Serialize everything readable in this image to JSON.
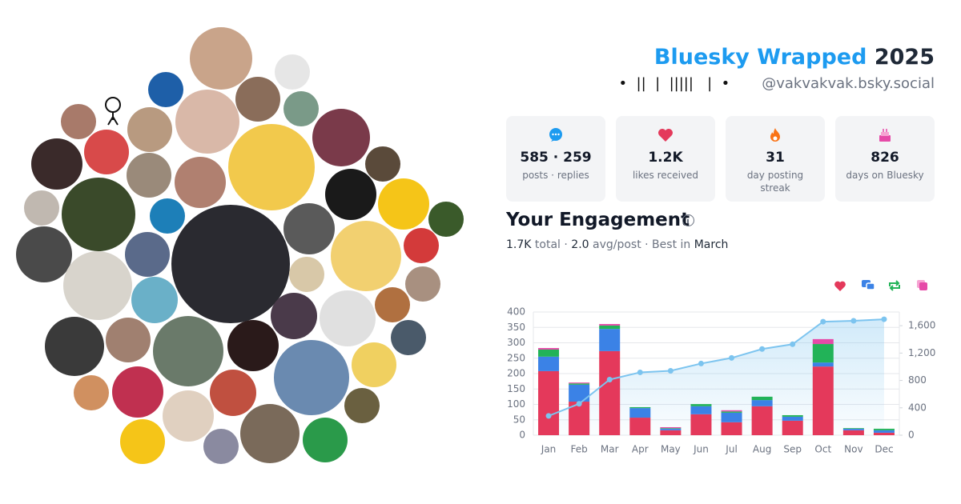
{
  "header": {
    "title": "Bluesky Wrapped",
    "year": "2025",
    "display_name": "•  ||  |  |||||   |  •",
    "handle": "@vakvakvak.bsky.social"
  },
  "stats": [
    {
      "value": "585 · 259",
      "label": "posts · replies"
    },
    {
      "value": "1.2K",
      "label": "likes received"
    },
    {
      "value": 31,
      "label": "day posting streak"
    },
    {
      "value": 826,
      "label": "days on Bluesky"
    }
  ],
  "engagement": {
    "title": "Your Engagement",
    "summary": [
      "1.7K",
      " total · ",
      "2.0",
      " avg/post · Best in ",
      "March"
    ]
  },
  "chart_data": {
    "type": "bar",
    "stacked": true,
    "categories": [
      "Jan",
      "Feb",
      "Mar",
      "Apr",
      "May",
      "Jun",
      "Jul",
      "Aug",
      "Sep",
      "Oct",
      "Nov",
      "Dec"
    ],
    "series": [
      {
        "color": "#e4395b",
        "values": [
          208,
          109,
          273,
          57,
          16,
          68,
          42,
          94,
          47,
          223,
          16,
          8
        ]
      },
      {
        "color": "#3b82e6",
        "values": [
          47,
          55,
          72,
          31,
          5,
          26,
          31,
          20,
          13,
          13,
          5,
          8
        ]
      },
      {
        "color": "#22b358",
        "values": [
          23,
          4,
          11,
          3,
          2,
          7,
          4,
          11,
          5,
          60,
          2,
          5
        ]
      },
      {
        "color": "#e64aa8",
        "values": [
          5,
          3,
          5,
          0,
          3,
          0,
          4,
          0,
          0,
          16,
          0,
          0
        ]
      },
      {
        "type": "line",
        "axis": "y2",
        "color": "#7cc4ef",
        "values": [
          282,
          459,
          812,
          918,
          941,
          1047,
          1129,
          1259,
          1329,
          1659,
          1671,
          1694
        ]
      }
    ],
    "ylim": [
      0,
      400
    ],
    "yticks": [
      0,
      50,
      100,
      150,
      200,
      250,
      300,
      350,
      400
    ],
    "y2lim": [
      0,
      1800
    ],
    "y2ticks": [
      0,
      400,
      800,
      {
        "value": 1200,
        "label": "1,200"
      },
      {
        "value": 1600,
        "label": "1,600"
      }
    ],
    "grid": true
  }
}
